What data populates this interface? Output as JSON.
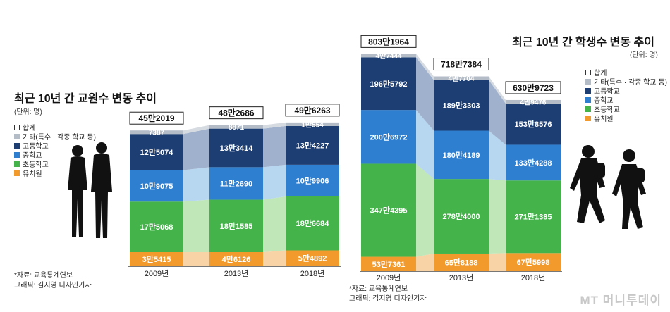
{
  "colors": {
    "other": "#b3bcc7",
    "high": "#1d3e73",
    "middle": "#2f7fd0",
    "elem": "#43b34a",
    "kinder": "#f39a2c",
    "band_other": "#d6dbe2",
    "band_high": "#9fb1cc",
    "band_middle": "#b7d6f0",
    "band_elem": "#bfe7b8",
    "band_kinder": "#f8d3a6"
  },
  "legend": {
    "total": "합계",
    "other": "기타(특수 · 각종 학교 등)",
    "high": "고등학교",
    "middle": "중학교",
    "elem": "초등학교",
    "kinder": "유치원"
  },
  "teachers": {
    "title": "최근 10년 간 교원수 변동 추이",
    "unit": "(단위: 명)",
    "source": "*자료: 교육통계연보",
    "graphic": "그래픽: 김지영 디자인기자"
  },
  "students": {
    "title": "최근 10년 간 학생수 변동 추이",
    "unit": "(단위: 명)",
    "source": "*자료: 교육통계연보",
    "graphic": "그래픽: 김지영 디자인기자"
  },
  "brand": {
    "logo": "MT",
    "name": "머니투데이"
  },
  "chart_data": [
    {
      "type": "bar",
      "stacked": true,
      "title": "최근 10년 간 교원수 변동 추이",
      "unit": "(단위: 명)",
      "categories": [
        "2009년",
        "2013년",
        "2018년"
      ],
      "totals": [
        452019,
        482686,
        496263
      ],
      "total_labels": [
        "45만2019",
        "48만2686",
        "49만6263"
      ],
      "series": [
        {
          "key": "kinder",
          "name": "유치원",
          "values": [
            35415,
            46126,
            54892
          ],
          "labels": [
            "3만5415",
            "4만6126",
            "5만4892"
          ]
        },
        {
          "key": "elem",
          "name": "초등학교",
          "values": [
            175068,
            181585,
            186684
          ],
          "labels": [
            "17만5068",
            "18만1585",
            "18만6684"
          ]
        },
        {
          "key": "middle",
          "name": "중학교",
          "values": [
            109075,
            112690,
            109906
          ],
          "labels": [
            "10만9075",
            "11만2690",
            "10만9906"
          ]
        },
        {
          "key": "high",
          "name": "고등학교",
          "values": [
            125074,
            133414,
            134227
          ],
          "labels": [
            "12만5074",
            "13만3414",
            "13만4227"
          ]
        },
        {
          "key": "other",
          "name": "기타(특수 · 각종 학교 등)",
          "values": [
            7387,
            8871,
            10554
          ],
          "labels": [
            "7387",
            "8871",
            "1만554"
          ]
        }
      ],
      "ylim": [
        0,
        500000
      ]
    },
    {
      "type": "bar",
      "stacked": true,
      "title": "최근 10년 간 학생수 변동 추이",
      "unit": "(단위: 명)",
      "categories": [
        "2009년",
        "2013년",
        "2018년"
      ],
      "totals": [
        8031964,
        7187384,
        6309723
      ],
      "total_labels": [
        "803만1964",
        "718만7384",
        "630만9723"
      ],
      "series": [
        {
          "key": "kinder",
          "name": "유치원",
          "values": [
            537361,
            658188,
            675998
          ],
          "labels": [
            "53만7361",
            "65만8188",
            "67만5998"
          ]
        },
        {
          "key": "elem",
          "name": "초등학교",
          "values": [
            3474395,
            2784000,
            2711385
          ],
          "labels": [
            "347만4395",
            "278만4000",
            "271만1385"
          ]
        },
        {
          "key": "middle",
          "name": "중학교",
          "values": [
            2006972,
            1804189,
            1334288
          ],
          "labels": [
            "200만6972",
            "180만4189",
            "133만4288"
          ]
        },
        {
          "key": "high",
          "name": "고등학교",
          "values": [
            1965792,
            1893303,
            1538576
          ],
          "labels": [
            "196만5792",
            "189만3303",
            "153만8576"
          ]
        },
        {
          "key": "other",
          "name": "기타(특수 · 각종 학교 등)",
          "values": [
            47444,
            47704,
            49476
          ],
          "labels": [
            "4만7444",
            "4만7704",
            "4만9476"
          ]
        }
      ],
      "ylim": [
        0,
        8100000
      ]
    }
  ]
}
